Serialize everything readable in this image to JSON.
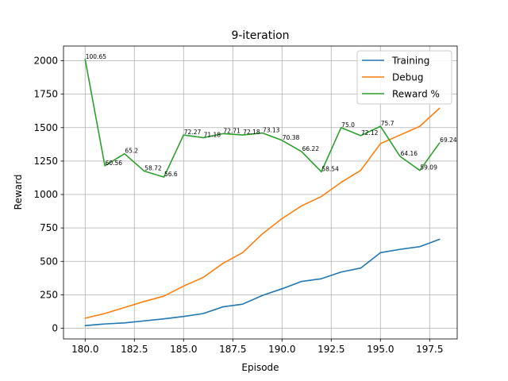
{
  "chart_data": {
    "type": "line",
    "title": "9-iteration",
    "xlabel": "Episode",
    "ylabel": "Reward",
    "xlim": [
      178.9,
      198.9
    ],
    "ylim": [
      -80,
      2110
    ],
    "xticks": [
      "180.0",
      "182.5",
      "185.0",
      "187.5",
      "190.0",
      "192.5",
      "195.0",
      "197.5"
    ],
    "yticks": [
      "0",
      "250",
      "500",
      "750",
      "1000",
      "1250",
      "1500",
      "1750",
      "2000"
    ],
    "grid": true,
    "legend_position": "top-right",
    "x": [
      180,
      181,
      182,
      183,
      184,
      185,
      186,
      187,
      188,
      189,
      190,
      191,
      192,
      193,
      194,
      195,
      196,
      197,
      198
    ],
    "series": [
      {
        "name": "Training",
        "color": "#1f77b4",
        "values": [
          20,
          32,
          40,
          55,
          70,
          88,
          110,
          160,
          180,
          245,
          295,
          350,
          370,
          420,
          450,
          565,
          590,
          610,
          665
        ]
      },
      {
        "name": "Debug",
        "color": "#ff7f0e",
        "values": [
          75,
          110,
          155,
          200,
          240,
          315,
          380,
          485,
          565,
          705,
          820,
          915,
          985,
          1090,
          1180,
          1380,
          1445,
          1510,
          1645
        ]
      },
      {
        "name": "Reward %",
        "color": "#2ca02c",
        "values": [
          2010,
          1215,
          1305,
          1175,
          1130,
          1445,
          1425,
          1455,
          1445,
          1460,
          1405,
          1320,
          1170,
          1500,
          1440,
          1510,
          1285,
          1180,
          1385
        ],
        "labels": [
          "100.65",
          "60.56",
          "65.2",
          "58.72",
          "56.6",
          "72.27",
          "71.18",
          "72.71",
          "72.18",
          "73.13",
          "70.38",
          "66.22",
          "58.54",
          "75.0",
          "72.12",
          "75.7",
          "64.16",
          "59.09",
          "69.24"
        ]
      }
    ]
  }
}
